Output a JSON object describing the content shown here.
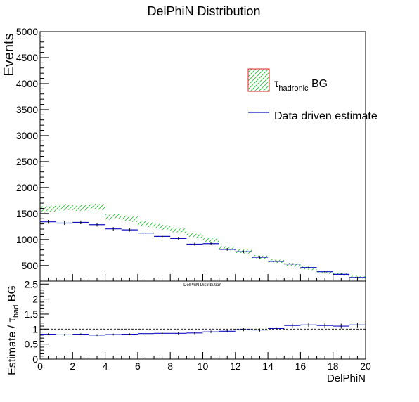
{
  "chart_data": [
    {
      "type": "line",
      "title": "DelPhiN Distribution",
      "xlabel": "",
      "ylabel": "Events",
      "xlim": [
        0,
        20
      ],
      "ylim": [
        0,
        5000
      ],
      "ylim_visible_from": 200,
      "y_tick_labels": [
        "500",
        "1000",
        "1500",
        "2000",
        "2500",
        "3000",
        "3500",
        "4000",
        "4500",
        "5000"
      ],
      "x_bin_edges": [
        0,
        1,
        2,
        3,
        4,
        5,
        6,
        7,
        8,
        9,
        10,
        11,
        12,
        13,
        14,
        15,
        16,
        17,
        18,
        19,
        20
      ],
      "legend": {
        "placement": "top-right",
        "entries": [
          {
            "label_main": "τ",
            "label_sub": "hadronic",
            "label_tail": " BG",
            "style": "hatched-band"
          },
          {
            "label_main": "Data driven estimate",
            "style": "line"
          }
        ]
      },
      "series": [
        {
          "name": "τhadronic BG",
          "style": "green-hatched-band",
          "bins": [
            {
              "x0": 0,
              "x1": 0.5,
              "low": 1520,
              "high": 1640
            },
            {
              "x0": 0.5,
              "x1": 1,
              "low": 1530,
              "high": 1650
            },
            {
              "x0": 1,
              "x1": 1.5,
              "low": 1560,
              "high": 1670
            },
            {
              "x0": 1.5,
              "x1": 2,
              "low": 1570,
              "high": 1680
            },
            {
              "x0": 2,
              "x1": 2.5,
              "low": 1550,
              "high": 1660
            },
            {
              "x0": 2.5,
              "x1": 3,
              "low": 1560,
              "high": 1670
            },
            {
              "x0": 3,
              "x1": 3.5,
              "low": 1580,
              "high": 1690
            },
            {
              "x0": 3.5,
              "x1": 4,
              "low": 1570,
              "high": 1680
            },
            {
              "x0": 4,
              "x1": 4.5,
              "low": 1380,
              "high": 1480
            },
            {
              "x0": 4.5,
              "x1": 5,
              "low": 1390,
              "high": 1490
            },
            {
              "x0": 5,
              "x1": 5.5,
              "low": 1360,
              "high": 1460
            },
            {
              "x0": 5.5,
              "x1": 6,
              "low": 1340,
              "high": 1440
            },
            {
              "x0": 6,
              "x1": 6.5,
              "low": 1260,
              "high": 1360
            },
            {
              "x0": 6.5,
              "x1": 7,
              "low": 1240,
              "high": 1330
            },
            {
              "x0": 7,
              "x1": 7.5,
              "low": 1210,
              "high": 1300
            },
            {
              "x0": 7.5,
              "x1": 8,
              "low": 1190,
              "high": 1280
            },
            {
              "x0": 8,
              "x1": 8.5,
              "low": 1140,
              "high": 1230
            },
            {
              "x0": 8.5,
              "x1": 9,
              "low": 1120,
              "high": 1210
            },
            {
              "x0": 9,
              "x1": 9.5,
              "low": 1050,
              "high": 1130
            },
            {
              "x0": 9.5,
              "x1": 10,
              "low": 1030,
              "high": 1110
            },
            {
              "x0": 10,
              "x1": 10.5,
              "low": 950,
              "high": 1030
            },
            {
              "x0": 10.5,
              "x1": 11,
              "low": 940,
              "high": 1020
            },
            {
              "x0": 11,
              "x1": 11.5,
              "low": 800,
              "high": 870
            },
            {
              "x0": 11.5,
              "x1": 12,
              "low": 790,
              "high": 860
            },
            {
              "x0": 12,
              "x1": 12.5,
              "low": 740,
              "high": 810
            },
            {
              "x0": 12.5,
              "x1": 13,
              "low": 730,
              "high": 800
            },
            {
              "x0": 13,
              "x1": 13.5,
              "low": 640,
              "high": 700
            },
            {
              "x0": 13.5,
              "x1": 14,
              "low": 620,
              "high": 690
            },
            {
              "x0": 14,
              "x1": 14.5,
              "low": 560,
              "high": 620
            },
            {
              "x0": 14.5,
              "x1": 15,
              "low": 550,
              "high": 610
            },
            {
              "x0": 15,
              "x1": 15.5,
              "low": 490,
              "high": 550
            },
            {
              "x0": 15.5,
              "x1": 16,
              "low": 480,
              "high": 540
            },
            {
              "x0": 16,
              "x1": 16.5,
              "low": 420,
              "high": 480
            },
            {
              "x0": 16.5,
              "x1": 17,
              "low": 410,
              "high": 470
            },
            {
              "x0": 17,
              "x1": 17.5,
              "low": 350,
              "high": 400
            },
            {
              "x0": 17.5,
              "x1": 18,
              "low": 340,
              "high": 390
            },
            {
              "x0": 18,
              "x1": 18.5,
              "low": 310,
              "high": 360
            },
            {
              "x0": 18.5,
              "x1": 19,
              "low": 300,
              "high": 350
            },
            {
              "x0": 19,
              "x1": 19.5,
              "low": 260,
              "high": 300
            },
            {
              "x0": 19.5,
              "x1": 20,
              "low": 250,
              "high": 290
            }
          ]
        },
        {
          "name": "Data driven estimate",
          "style": "blue-step-with-error",
          "values": [
            1340,
            1315,
            1330,
            1285,
            1205,
            1185,
            1125,
            1060,
            1020,
            910,
            920,
            810,
            765,
            660,
            580,
            530,
            460,
            380,
            330,
            270
          ],
          "errors": [
            35,
            35,
            35,
            35,
            32,
            32,
            32,
            30,
            30,
            28,
            28,
            26,
            25,
            24,
            22,
            21,
            20,
            18,
            17,
            15
          ]
        }
      ]
    },
    {
      "type": "scatter",
      "title": "DelPhiN Distribution",
      "xlabel": "DelPhiN",
      "ylabel_main": "Estimate / τ",
      "ylabel_sub": "had",
      "ylabel_tail": " BG",
      "xlim": [
        0,
        20
      ],
      "ylim": [
        0,
        2.6
      ],
      "x_tick_labels": [
        "0",
        "2",
        "4",
        "6",
        "8",
        "10",
        "12",
        "14",
        "16",
        "18",
        "20"
      ],
      "y_tick_labels": [
        "0",
        "0.5",
        "1",
        "1.5",
        "2",
        "2.5"
      ],
      "reference_line": 1,
      "series": [
        {
          "name": "ratio",
          "x": [
            0.5,
            1.5,
            2.5,
            3.5,
            4.5,
            5.5,
            6.5,
            7.5,
            8.5,
            9.5,
            10.5,
            11.5,
            12.5,
            13.5,
            14.5,
            15.5,
            16.5,
            17.5,
            18.5,
            19.5
          ],
          "y": [
            0.83,
            0.81,
            0.83,
            0.8,
            0.82,
            0.83,
            0.85,
            0.86,
            0.86,
            0.87,
            0.91,
            0.93,
            0.98,
            0.97,
            1.02,
            1.12,
            1.14,
            1.12,
            1.1,
            1.14
          ],
          "errors": [
            0.03,
            0.03,
            0.03,
            0.03,
            0.03,
            0.03,
            0.03,
            0.03,
            0.04,
            0.04,
            0.04,
            0.04,
            0.05,
            0.05,
            0.05,
            0.06,
            0.06,
            0.07,
            0.08,
            0.08
          ]
        }
      ]
    }
  ]
}
